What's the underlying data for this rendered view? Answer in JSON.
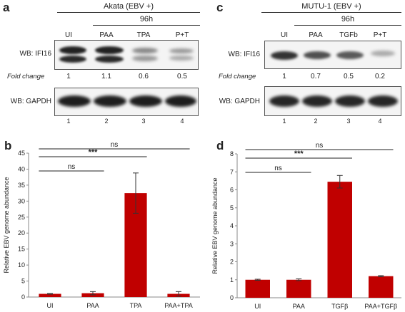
{
  "colors": {
    "bar": "#c00000",
    "band": "#2a2a2a",
    "text": "#222222"
  },
  "panel_a": {
    "letter": "a",
    "cell_header": "Akata (EBV +)",
    "time_header": "96h",
    "lanes": [
      "UI",
      "PAA",
      "TPA",
      "P+T"
    ],
    "wb_ifi16": "WB: IFI16",
    "fold_label": "Fold change",
    "fold_values": [
      "1",
      "1.1",
      "0.6",
      "0.5"
    ],
    "wb_gapdh": "WB: GAPDH",
    "lane_numbers": [
      "1",
      "2",
      "3",
      "4"
    ]
  },
  "panel_c": {
    "letter": "c",
    "cell_header": "MUTU-1 (EBV +)",
    "time_header": "96h",
    "lanes": [
      "UI",
      "PAA",
      "TGFb",
      "P+T"
    ],
    "wb_ifi16": "WB: IFI16",
    "fold_label": "Fold change",
    "fold_values": [
      "1",
      "0.7",
      "0.5",
      "0.2"
    ],
    "wb_gapdh": "WB: GAPDH",
    "lane_numbers": [
      "1",
      "2",
      "3",
      "4"
    ]
  },
  "chart_data": [
    {
      "panel": "b",
      "type": "bar",
      "categories": [
        "UI",
        "PAA",
        "TPA",
        "PAA+TPA"
      ],
      "values": [
        1,
        1.2,
        32.5,
        1
      ],
      "errors": [
        0.1,
        0.5,
        6.3,
        0.7
      ],
      "ylabel": "Relative EBV genome abundance",
      "ylim": [
        0,
        45
      ],
      "yticks": [
        "0",
        "5",
        "10",
        "15",
        "20",
        "25",
        "30",
        "35",
        "40",
        "45"
      ],
      "significance": [
        {
          "from": "UI",
          "to": "PAA",
          "label": "ns"
        },
        {
          "from": "UI",
          "to": "TPA",
          "label": "***"
        },
        {
          "from": "UI",
          "to": "PAA+TPA",
          "label": "ns"
        }
      ]
    },
    {
      "panel": "d",
      "type": "bar",
      "categories": [
        "UI",
        "PAA",
        "TGFβ",
        "PAA+TGFβ"
      ],
      "values": [
        1,
        1,
        6.45,
        1.2
      ],
      "errors": [
        0.03,
        0.05,
        0.35,
        0.03
      ],
      "ylabel": "Relative EBV genome abundance",
      "ylim": [
        0,
        8
      ],
      "yticks": [
        "0",
        "1",
        "2",
        "3",
        "4",
        "5",
        "6",
        "7",
        "8"
      ],
      "significance": [
        {
          "from": "UI",
          "to": "PAA",
          "label": "ns"
        },
        {
          "from": "UI",
          "to": "TGFβ",
          "label": "***"
        },
        {
          "from": "UI",
          "to": "PAA+TGFβ",
          "label": "ns"
        }
      ]
    }
  ]
}
